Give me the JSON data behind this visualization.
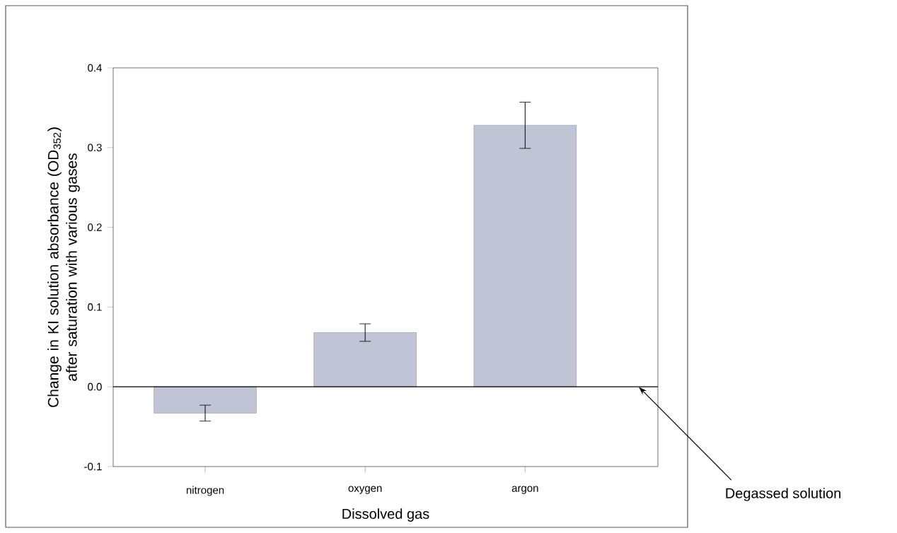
{
  "chart_data": {
    "type": "bar",
    "categories": [
      "nitrogen",
      "oxygen",
      "argon"
    ],
    "values": [
      -0.033,
      0.068,
      0.328
    ],
    "errors": [
      0.01,
      0.011,
      0.029
    ],
    "color": "#c0c4d4",
    "xlabel": "Dissolved gas",
    "ylabel": "Change in KI solution absorbance (OD$_{352}$) after saturation with various gases",
    "ylim": [
      -0.1,
      0.4
    ],
    "yticks": [
      -0.1,
      {
        "value": 0,
        "label": "0.0"
      },
      0.1,
      0.2,
      0.3,
      0.4
    ],
    "annotations": [
      "Degassed solution"
    ]
  }
}
